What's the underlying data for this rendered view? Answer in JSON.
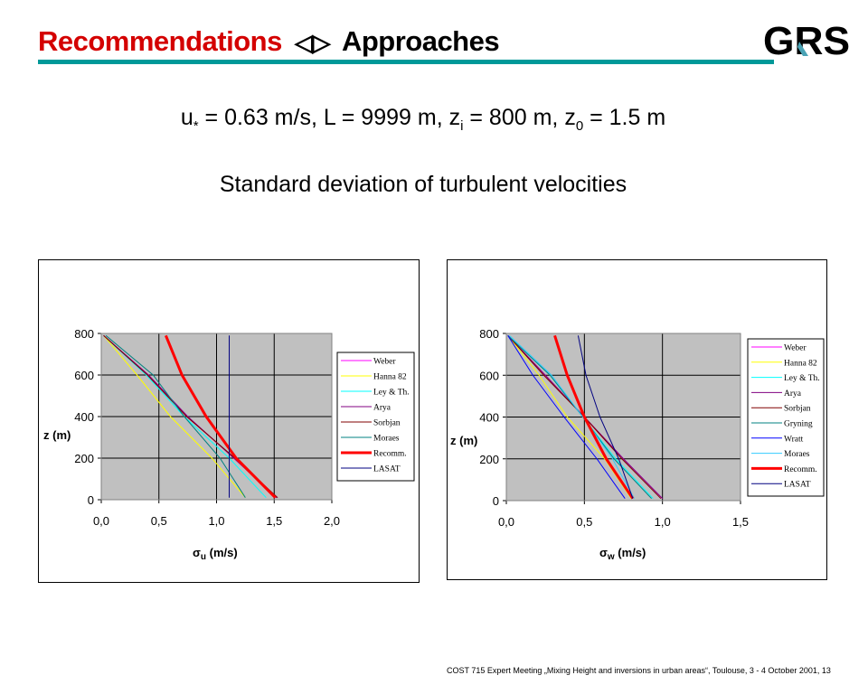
{
  "header": {
    "title_left": "Recommendations",
    "title_arrows": "<>",
    "title_right": "Approaches",
    "logo_text": "GRS",
    "accent_color": "#009999",
    "title_color": "#d40000"
  },
  "params": {
    "u_sym": "u",
    "u_sub": "*",
    "u_val": " = 0.63 m/s, L = 9999 m, ",
    "zi_sym": "z",
    "zi_sub": "i",
    "zi_val": " = 800 m, ",
    "z0_sym": "z",
    "z0_sub": "0",
    "z0_val": " = 1.5 m"
  },
  "heading": "Standard deviation of turbulent velocities",
  "footer": "COST 715 Expert Meeting „Mixing Height and inversions in urban areas“, Toulouse, 3 - 4 October 2001,  13",
  "chart_data": [
    {
      "type": "line",
      "ylabel": "z (m)",
      "xlabel_symbol": "σ",
      "xlabel_sub": "u",
      "xlabel_unit": "(m/s)",
      "xlim": [
        0,
        2.0
      ],
      "ylim": [
        0,
        800
      ],
      "xticks": [
        0,
        0.5,
        1.0,
        1.5,
        2.0
      ],
      "xtick_labels": [
        "0,0",
        "0,5",
        "1,0",
        "1,5",
        "2,0"
      ],
      "yticks": [
        0,
        200,
        400,
        600,
        800
      ],
      "ytick_labels": [
        "0",
        "200",
        "400",
        "600",
        "800"
      ],
      "grid": true,
      "legend": "right",
      "series": [
        {
          "name": "Weber",
          "color": "#ff00ff",
          "width": 1,
          "x": [
            0.02,
            0.41,
            0.75,
            1.15,
            1.52
          ],
          "y": [
            790,
            600,
            400,
            200,
            10
          ]
        },
        {
          "name": "Hanna 82",
          "color": "#ffff00",
          "width": 1,
          "x": [
            0.02,
            0.31,
            0.6,
            0.96,
            1.25
          ],
          "y": [
            790,
            600,
            400,
            200,
            10
          ]
        },
        {
          "name": "Ley & Th.",
          "color": "#00ffff",
          "width": 1,
          "x": [
            0.02,
            0.39,
            0.72,
            1.11,
            1.43
          ],
          "y": [
            790,
            600,
            400,
            200,
            10
          ]
        },
        {
          "name": "Arya",
          "color": "#800080",
          "width": 1,
          "x": [
            0.02,
            0.41,
            0.75,
            1.15,
            1.52
          ],
          "y": [
            790,
            600,
            400,
            200,
            10
          ]
        },
        {
          "name": "Sorbjan",
          "color": "#800000",
          "width": 1,
          "x": [
            0.02,
            0.4,
            0.74,
            1.16,
            1.53
          ],
          "y": [
            790,
            600,
            400,
            200,
            10
          ]
        },
        {
          "name": "Moraes",
          "color": "#008080",
          "width": 1,
          "x": [
            0.04,
            0.45,
            0.72,
            1.03,
            1.25
          ],
          "y": [
            790,
            600,
            400,
            200,
            10
          ]
        },
        {
          "name": "Recomm.",
          "color": "#ff0000",
          "width": 3,
          "x": [
            0.56,
            0.7,
            0.91,
            1.17,
            1.51
          ],
          "y": [
            790,
            600,
            400,
            200,
            10
          ]
        },
        {
          "name": "LASAT",
          "color": "#000080",
          "width": 1,
          "x": [
            1.11,
            1.11
          ],
          "y": [
            790,
            10
          ]
        }
      ]
    },
    {
      "type": "line",
      "ylabel": "z (m)",
      "xlabel_symbol": "σ",
      "xlabel_sub": "w",
      "xlabel_unit": "(m/s)",
      "xlim": [
        0,
        1.5
      ],
      "ylim": [
        0,
        800
      ],
      "xticks": [
        0,
        0.5,
        1.0,
        1.5
      ],
      "xtick_labels": [
        "0,0",
        "0,5",
        "1,0",
        "1,5"
      ],
      "yticks": [
        0,
        200,
        400,
        600,
        800
      ],
      "ytick_labels": [
        "0",
        "200",
        "400",
        "600",
        "800"
      ],
      "grid": true,
      "legend": "right",
      "series": [
        {
          "name": "Weber",
          "color": "#ff00ff",
          "width": 1,
          "x": [
            0.01,
            0.25,
            0.5,
            0.75,
            1.0
          ],
          "y": [
            790,
            600,
            400,
            200,
            10
          ]
        },
        {
          "name": "Hanna 82",
          "color": "#ffff00",
          "width": 1,
          "x": [
            0.01,
            0.21,
            0.39,
            0.63,
            0.8
          ],
          "y": [
            790,
            600,
            400,
            200,
            10
          ]
        },
        {
          "name": "Ley & Th.",
          "color": "#00ffff",
          "width": 1,
          "x": [
            0.01,
            0.28,
            0.49,
            0.7,
            0.94
          ],
          "y": [
            790,
            600,
            400,
            200,
            10
          ]
        },
        {
          "name": "Arya",
          "color": "#800080",
          "width": 1,
          "x": [
            0.01,
            0.25,
            0.5,
            0.75,
            1.0
          ],
          "y": [
            790,
            600,
            400,
            200,
            10
          ]
        },
        {
          "name": "Sorbjan",
          "color": "#800000",
          "width": 1,
          "x": [
            0.01,
            0.24,
            0.5,
            0.74,
            0.99
          ],
          "y": [
            790,
            600,
            400,
            200,
            10
          ]
        },
        {
          "name": "Gryning",
          "color": "#008080",
          "width": 1,
          "x": [
            0.01,
            0.28,
            0.49,
            0.69,
            0.93
          ],
          "y": [
            790,
            600,
            400,
            200,
            10
          ]
        },
        {
          "name": "Wratt",
          "color": "#0000ff",
          "width": 1,
          "x": [
            0.01,
            0.17,
            0.37,
            0.58,
            0.76
          ],
          "y": [
            790,
            600,
            400,
            200,
            10
          ]
        },
        {
          "name": "Moraes",
          "color": "#33ccff",
          "width": 1,
          "x": [
            0.02,
            0.29,
            0.49,
            0.68,
            0.82
          ],
          "y": [
            790,
            600,
            400,
            200,
            10
          ]
        },
        {
          "name": "Recomm.",
          "color": "#ff0000",
          "width": 3,
          "x": [
            0.31,
            0.39,
            0.5,
            0.64,
            0.81
          ],
          "y": [
            790,
            600,
            400,
            200,
            10
          ]
        },
        {
          "name": "LASAT",
          "color": "#000080",
          "width": 1,
          "x": [
            0.46,
            0.51,
            0.6,
            0.72,
            0.81
          ],
          "y": [
            790,
            600,
            400,
            200,
            10
          ]
        }
      ]
    }
  ]
}
